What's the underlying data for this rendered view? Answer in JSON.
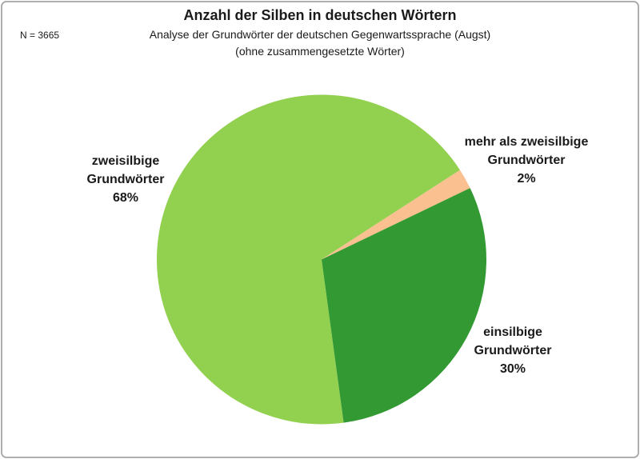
{
  "header": {
    "title": "Anzahl der Silben in deutschen Wörtern",
    "subtitle_line1": "Analyse der Grundwörter der deutschen Gegenwartssprache (Augst)",
    "subtitle_line2": "(ohne zusammengesetzte Wörter)",
    "n_label": "N = 3665"
  },
  "chart_data": {
    "type": "pie",
    "title": "Anzahl der Silben in deutschen Wörtern",
    "subtitle": "Analyse der Grundwörter der deutschen Gegenwartssprache (Augst) (ohne zusammengesetzte Wörter)",
    "n_total": 3665,
    "legend": "none",
    "labels_position": "outside",
    "start_angle_deg_clockwise_from_top": 172.3,
    "slices": [
      {
        "label": "zweisilbige Grundwörter",
        "name_lines": [
          "zweisilbige",
          "Grundwörter"
        ],
        "value_pct": 68,
        "pct_label": "68%",
        "color": "#92d050"
      },
      {
        "label": "mehr als zweisilbige Grundwörter",
        "name_lines": [
          "mehr als zweisilbige",
          "Grundwörter"
        ],
        "value_pct": 2,
        "pct_label": "2%",
        "color": "#fac090"
      },
      {
        "label": "einsilbige Grundwörter",
        "name_lines": [
          "einsilbige",
          "Grundwörter"
        ],
        "value_pct": 30,
        "pct_label": "30%",
        "color": "#339933"
      }
    ]
  }
}
